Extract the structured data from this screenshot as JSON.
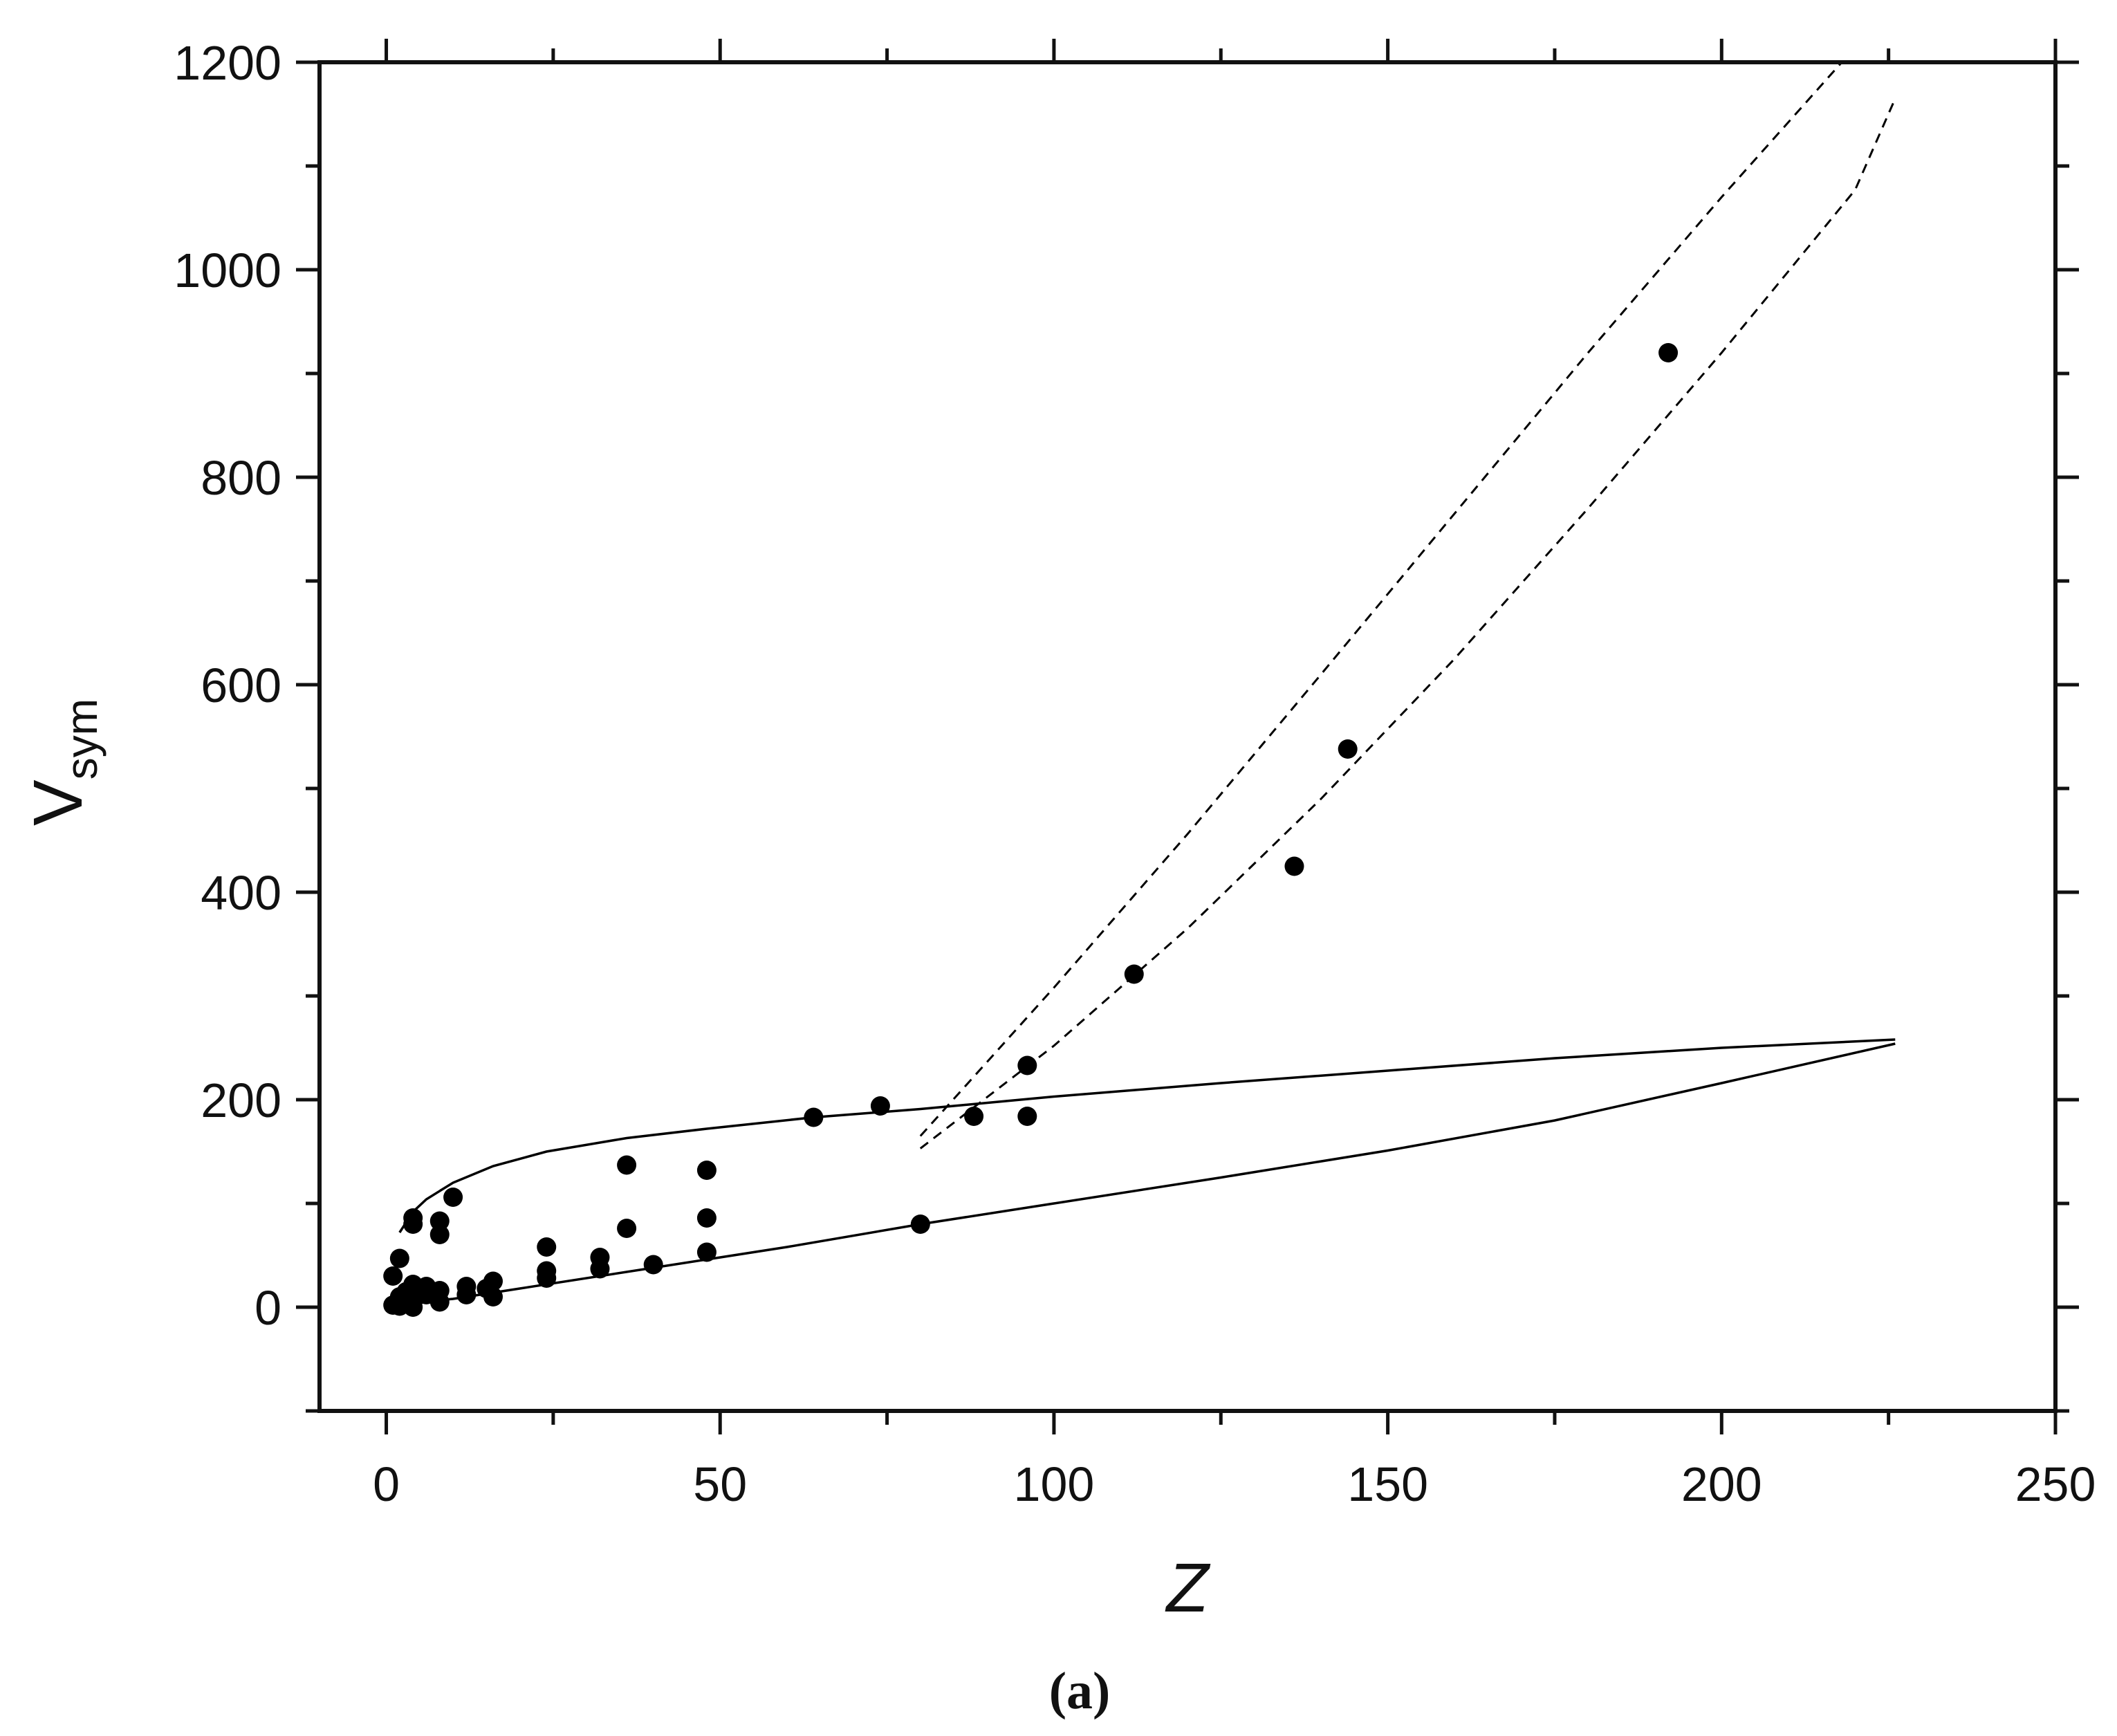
{
  "chart_data": {
    "type": "scatter",
    "title": "",
    "xlabel": "Z",
    "ylabel": "V",
    "ylabel_subscript": "sym",
    "panel_label": "(a)",
    "xlim": [
      -10,
      250
    ],
    "ylim": [
      -100,
      1200
    ],
    "x_ticks": [
      0,
      50,
      100,
      150,
      200,
      250
    ],
    "y_ticks": [
      0,
      200,
      400,
      600,
      800,
      1000,
      1200
    ],
    "x_tick_labels": [
      "0",
      "50",
      "100",
      "150",
      "200",
      "250"
    ],
    "y_tick_labels": [
      "0",
      "200",
      "400",
      "600",
      "800",
      "1000",
      "1200"
    ],
    "grid": false,
    "legend": "none",
    "colors": {
      "axes": "#111111",
      "points": "#000000",
      "lines": "#000000"
    },
    "points": [
      {
        "x": 1,
        "y": 2
      },
      {
        "x": 1,
        "y": 30
      },
      {
        "x": 2,
        "y": 1
      },
      {
        "x": 2,
        "y": 47
      },
      {
        "x": 2,
        "y": 10
      },
      {
        "x": 3,
        "y": 5
      },
      {
        "x": 3,
        "y": 15
      },
      {
        "x": 4,
        "y": 0
      },
      {
        "x": 4,
        "y": 8
      },
      {
        "x": 4,
        "y": 22
      },
      {
        "x": 4,
        "y": 80
      },
      {
        "x": 4,
        "y": 86
      },
      {
        "x": 5,
        "y": 12
      },
      {
        "x": 6,
        "y": 20
      },
      {
        "x": 6,
        "y": 12
      },
      {
        "x": 7,
        "y": 15
      },
      {
        "x": 8,
        "y": 5
      },
      {
        "x": 8,
        "y": 16
      },
      {
        "x": 8,
        "y": 70
      },
      {
        "x": 8,
        "y": 83
      },
      {
        "x": 10,
        "y": 106
      },
      {
        "x": 12,
        "y": 12
      },
      {
        "x": 12,
        "y": 20
      },
      {
        "x": 15,
        "y": 18
      },
      {
        "x": 16,
        "y": 10
      },
      {
        "x": 16,
        "y": 25
      },
      {
        "x": 24,
        "y": 28
      },
      {
        "x": 24,
        "y": 35
      },
      {
        "x": 24,
        "y": 58
      },
      {
        "x": 32,
        "y": 37
      },
      {
        "x": 32,
        "y": 48
      },
      {
        "x": 36,
        "y": 76
      },
      {
        "x": 36,
        "y": 137
      },
      {
        "x": 40,
        "y": 41
      },
      {
        "x": 48,
        "y": 53
      },
      {
        "x": 48,
        "y": 86
      },
      {
        "x": 48,
        "y": 132
      },
      {
        "x": 64,
        "y": 183
      },
      {
        "x": 74,
        "y": 194
      },
      {
        "x": 80,
        "y": 80
      },
      {
        "x": 88,
        "y": 184
      },
      {
        "x": 96,
        "y": 184
      },
      {
        "x": 96,
        "y": 233
      },
      {
        "x": 112,
        "y": 321
      },
      {
        "x": 136,
        "y": 425
      },
      {
        "x": 144,
        "y": 538
      },
      {
        "x": 192,
        "y": 920
      }
    ],
    "curves": [
      {
        "style": "solid",
        "x": [
          2,
          4,
          6,
          10,
          16,
          24,
          36,
          48,
          64,
          80,
          100,
          125,
          150,
          175,
          200,
          226
        ],
        "y": [
          72,
          92,
          104,
          120,
          136,
          150,
          163,
          172,
          183,
          191,
          203,
          216,
          228,
          240,
          250,
          258
        ]
      },
      {
        "style": "solid",
        "x": [
          1,
          10,
          20,
          40,
          60,
          80,
          100,
          125,
          150,
          175,
          200,
          226
        ],
        "y": [
          3,
          8,
          18,
          38,
          58,
          80,
          100,
          125,
          151,
          180,
          216,
          254
        ]
      },
      {
        "style": "dashed",
        "x": [
          80,
          100,
          120,
          140,
          160,
          180,
          200,
          218
        ],
        "y": [
          165,
          308,
          456,
          610,
          765,
          920,
          1070,
          1200
        ]
      },
      {
        "style": "dashed",
        "x": [
          80,
          100,
          120,
          140,
          160,
          180,
          200,
          220,
          226
        ],
        "y": [
          153,
          252,
          365,
          490,
          625,
          770,
          920,
          1077,
          1165
        ]
      }
    ]
  }
}
